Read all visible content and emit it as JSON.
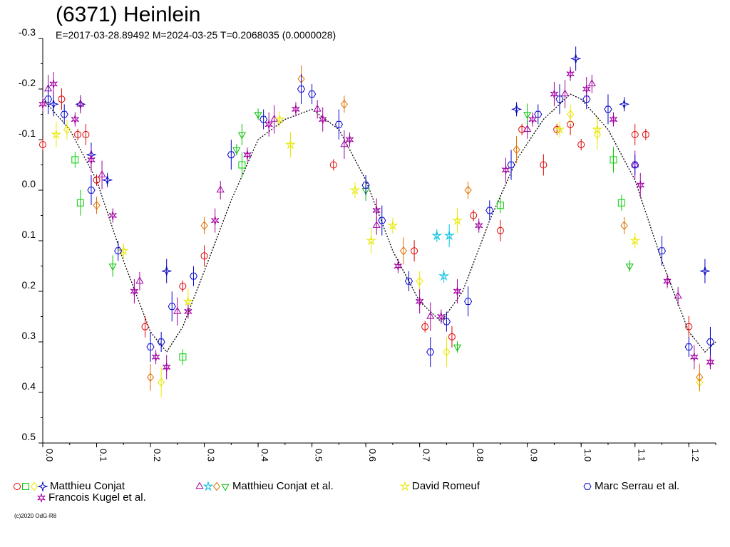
{
  "title": "(6371) Heinlein",
  "subtitle": "E=2017-03-28.89492    M=2024-03-25    T=0.2068035 (0.0000028)",
  "copyright": "(c)2020 OdG-R8",
  "legend": [
    {
      "label": "Matthieu Conjat",
      "markers": [
        {
          "shape": "circle",
          "color": "#e00000"
        },
        {
          "shape": "square",
          "color": "#00d000"
        },
        {
          "shape": "diamond",
          "color": "#e8e800"
        },
        {
          "shape": "star4",
          "color": "#0000c0"
        }
      ]
    },
    {
      "label": "Matthieu Conjat et al.",
      "markers": [
        {
          "shape": "triangle",
          "color": "#a000a0"
        },
        {
          "shape": "star5",
          "color": "#00c0e0"
        },
        {
          "shape": "diamond",
          "color": "#e07000"
        },
        {
          "shape": "tridown",
          "color": "#00c000"
        }
      ]
    },
    {
      "label": "David Romeuf",
      "markers": [
        {
          "shape": "star5",
          "color": "#e8e800"
        }
      ]
    },
    {
      "label": "Marc Serrau et al.",
      "markers": [
        {
          "shape": "hexagon",
          "color": "#0000d0"
        }
      ]
    },
    {
      "label": "Francois Kugel et al.",
      "markers": [
        {
          "shape": "star6",
          "color": "#a000a0"
        }
      ]
    }
  ],
  "chart_data": {
    "type": "scatter",
    "xlabel": "",
    "ylabel": "",
    "xlim": [
      0.0,
      1.25
    ],
    "ylim": [
      -0.3,
      0.5
    ],
    "y_inverted": true,
    "xticks": [
      "0.0",
      "0.1",
      "0.2",
      "0.3",
      "0.4",
      "0.5",
      "0.6",
      "0.7",
      "0.8",
      "0.9",
      "1.0",
      "1.1",
      "1.2"
    ],
    "yticks": [
      "-0.3",
      "-0.2",
      "-0.1",
      "0.0",
      "0.1",
      "0.2",
      "0.3",
      "0.4",
      "0.5"
    ],
    "fit_curve": [
      [
        0.0,
        -0.18
      ],
      [
        0.05,
        -0.12
      ],
      [
        0.1,
        -0.02
      ],
      [
        0.15,
        0.14
      ],
      [
        0.2,
        0.28
      ],
      [
        0.23,
        0.32
      ],
      [
        0.26,
        0.27
      ],
      [
        0.3,
        0.16
      ],
      [
        0.35,
        0.02
      ],
      [
        0.4,
        -0.1
      ],
      [
        0.45,
        -0.14
      ],
      [
        0.5,
        -0.16
      ],
      [
        0.55,
        -0.12
      ],
      [
        0.6,
        -0.02
      ],
      [
        0.65,
        0.12
      ],
      [
        0.7,
        0.22
      ],
      [
        0.74,
        0.26
      ],
      [
        0.78,
        0.2
      ],
      [
        0.83,
        0.06
      ],
      [
        0.88,
        -0.06
      ],
      [
        0.93,
        -0.14
      ],
      [
        0.98,
        -0.19
      ],
      [
        1.0,
        -0.18
      ],
      [
        1.05,
        -0.12
      ],
      [
        1.1,
        -0.02
      ],
      [
        1.15,
        0.14
      ],
      [
        1.2,
        0.28
      ],
      [
        1.23,
        0.32
      ],
      [
        1.25,
        0.3
      ]
    ],
    "series": [
      {
        "name": "Matthieu Conjat",
        "shape": "circle",
        "color": "#e00000",
        "points": [
          [
            0.0,
            -0.09
          ],
          [
            0.035,
            -0.18
          ],
          [
            0.065,
            -0.11
          ],
          [
            0.08,
            -0.11
          ],
          [
            0.1,
            -0.02
          ],
          [
            0.19,
            0.27
          ],
          [
            0.26,
            0.19
          ],
          [
            0.3,
            0.13
          ],
          [
            0.54,
            -0.05
          ],
          [
            0.69,
            0.12
          ],
          [
            0.71,
            0.27
          ],
          [
            0.76,
            0.29
          ],
          [
            0.8,
            0.05
          ],
          [
            0.85,
            0.08
          ],
          [
            0.89,
            -0.12
          ],
          [
            0.93,
            -0.05
          ],
          [
            0.955,
            -0.12
          ],
          [
            0.98,
            -0.13
          ],
          [
            1.0,
            -0.09
          ],
          [
            1.1,
            -0.11
          ],
          [
            1.12,
            -0.11
          ],
          [
            1.2,
            0.27
          ]
        ]
      },
      {
        "name": "Matthieu Conjat",
        "shape": "square",
        "color": "#00d000",
        "points": [
          [
            0.06,
            -0.06
          ],
          [
            0.07,
            0.025
          ],
          [
            0.26,
            0.33
          ],
          [
            0.37,
            -0.05
          ],
          [
            0.85,
            0.03
          ],
          [
            1.06,
            -0.06
          ],
          [
            1.075,
            0.025
          ]
        ]
      },
      {
        "name": "Matthieu Conjat",
        "shape": "diamond",
        "color": "#e8e800",
        "points": [
          [
            0.045,
            -0.12
          ],
          [
            0.22,
            0.38
          ],
          [
            0.7,
            0.18
          ],
          [
            0.75,
            0.32
          ],
          [
            0.98,
            -0.15
          ],
          [
            1.03,
            -0.11
          ],
          [
            1.22,
            0.38
          ]
        ]
      },
      {
        "name": "Matthieu Conjat",
        "shape": "star4",
        "color": "#0000c0",
        "points": [
          [
            0.02,
            -0.17
          ],
          [
            0.07,
            -0.17
          ],
          [
            0.09,
            -0.07
          ],
          [
            0.12,
            -0.02
          ],
          [
            0.23,
            0.16
          ],
          [
            0.88,
            -0.16
          ],
          [
            0.99,
            -0.26
          ],
          [
            1.08,
            -0.17
          ],
          [
            1.23,
            0.16
          ]
        ]
      },
      {
        "name": "Matthieu Conjat et al.",
        "shape": "triangle",
        "color": "#a000a0",
        "points": [
          [
            0.01,
            -0.2
          ],
          [
            0.07,
            -0.17
          ],
          [
            0.11,
            -0.03
          ],
          [
            0.18,
            0.18
          ],
          [
            0.25,
            0.24
          ],
          [
            0.33,
            0.0
          ],
          [
            0.43,
            -0.14
          ],
          [
            0.51,
            -0.16
          ],
          [
            0.56,
            -0.09
          ],
          [
            0.62,
            0.07
          ],
          [
            0.72,
            0.25
          ],
          [
            0.9,
            -0.12
          ],
          [
            0.97,
            -0.19
          ],
          [
            1.02,
            -0.21
          ],
          [
            1.1,
            -0.05
          ],
          [
            1.18,
            0.21
          ]
        ]
      },
      {
        "name": "Matthieu Conjat et al.",
        "shape": "star5",
        "color": "#00c0e0",
        "points": [
          [
            0.732,
            0.09
          ],
          [
            0.755,
            0.09
          ],
          [
            0.745,
            0.17
          ]
        ]
      },
      {
        "name": "Matthieu Conjat et al.",
        "shape": "diamond",
        "color": "#e07000",
        "points": [
          [
            0.1,
            0.03
          ],
          [
            0.2,
            0.37
          ],
          [
            0.3,
            0.07
          ],
          [
            0.48,
            -0.22
          ],
          [
            0.56,
            -0.17
          ],
          [
            0.67,
            0.12
          ],
          [
            0.79,
            0.0
          ],
          [
            0.88,
            -0.08
          ],
          [
            1.08,
            0.07
          ],
          [
            1.22,
            0.37
          ]
        ]
      },
      {
        "name": "Matthieu Conjat et al.",
        "shape": "tridown",
        "color": "#00c000",
        "points": [
          [
            0.13,
            0.15
          ],
          [
            0.36,
            -0.08
          ],
          [
            0.37,
            -0.11
          ],
          [
            0.4,
            -0.15
          ],
          [
            0.6,
            0.0
          ],
          [
            0.77,
            0.31
          ],
          [
            0.9,
            -0.15
          ],
          [
            1.09,
            0.15
          ]
        ]
      },
      {
        "name": "David Romeuf",
        "shape": "star5",
        "color": "#e8e800",
        "points": [
          [
            0.025,
            -0.11
          ],
          [
            0.15,
            0.12
          ],
          [
            0.27,
            0.22
          ],
          [
            0.44,
            -0.14
          ],
          [
            0.46,
            -0.09
          ],
          [
            0.58,
            0.0
          ],
          [
            0.61,
            0.1
          ],
          [
            0.65,
            0.07
          ],
          [
            0.77,
            0.06
          ],
          [
            0.96,
            -0.12
          ],
          [
            1.03,
            -0.12
          ],
          [
            1.1,
            0.1
          ]
        ]
      },
      {
        "name": "Marc Serrau et al.",
        "shape": "hexagon",
        "color": "#0000d0",
        "points": [
          [
            0.01,
            -0.18
          ],
          [
            0.04,
            -0.15
          ],
          [
            0.09,
            0.0
          ],
          [
            0.14,
            0.12
          ],
          [
            0.2,
            0.31
          ],
          [
            0.22,
            0.3
          ],
          [
            0.24,
            0.23
          ],
          [
            0.28,
            0.17
          ],
          [
            0.35,
            -0.07
          ],
          [
            0.41,
            -0.14
          ],
          [
            0.48,
            -0.2
          ],
          [
            0.5,
            -0.19
          ],
          [
            0.55,
            -0.13
          ],
          [
            0.6,
            -0.01
          ],
          [
            0.63,
            0.06
          ],
          [
            0.68,
            0.18
          ],
          [
            0.72,
            0.32
          ],
          [
            0.75,
            0.26
          ],
          [
            0.79,
            0.22
          ],
          [
            0.83,
            0.04
          ],
          [
            0.87,
            -0.05
          ],
          [
            0.92,
            -0.15
          ],
          [
            0.96,
            -0.18
          ],
          [
            1.01,
            -0.18
          ],
          [
            1.05,
            -0.16
          ],
          [
            1.1,
            -0.05
          ],
          [
            1.15,
            0.12
          ],
          [
            1.2,
            0.31
          ],
          [
            1.24,
            0.3
          ]
        ]
      },
      {
        "name": "Francois Kugel et al.",
        "shape": "star6",
        "color": "#a000a0",
        "points": [
          [
            0.0,
            -0.17
          ],
          [
            0.02,
            -0.21
          ],
          [
            0.06,
            -0.14
          ],
          [
            0.09,
            -0.06
          ],
          [
            0.13,
            0.05
          ],
          [
            0.17,
            0.2
          ],
          [
            0.21,
            0.33
          ],
          [
            0.23,
            0.35
          ],
          [
            0.27,
            0.24
          ],
          [
            0.32,
            0.06
          ],
          [
            0.38,
            -0.07
          ],
          [
            0.42,
            -0.13
          ],
          [
            0.47,
            -0.16
          ],
          [
            0.52,
            -0.14
          ],
          [
            0.57,
            -0.1
          ],
          [
            0.62,
            0.04
          ],
          [
            0.66,
            0.15
          ],
          [
            0.7,
            0.22
          ],
          [
            0.74,
            0.25
          ],
          [
            0.77,
            0.2
          ],
          [
            0.81,
            0.07
          ],
          [
            0.86,
            -0.04
          ],
          [
            0.91,
            -0.14
          ],
          [
            0.95,
            -0.19
          ],
          [
            0.98,
            -0.23
          ],
          [
            1.01,
            -0.2
          ],
          [
            1.06,
            -0.14
          ],
          [
            1.11,
            -0.01
          ],
          [
            1.16,
            0.18
          ],
          [
            1.21,
            0.33
          ],
          [
            1.24,
            0.34
          ]
        ]
      }
    ]
  }
}
